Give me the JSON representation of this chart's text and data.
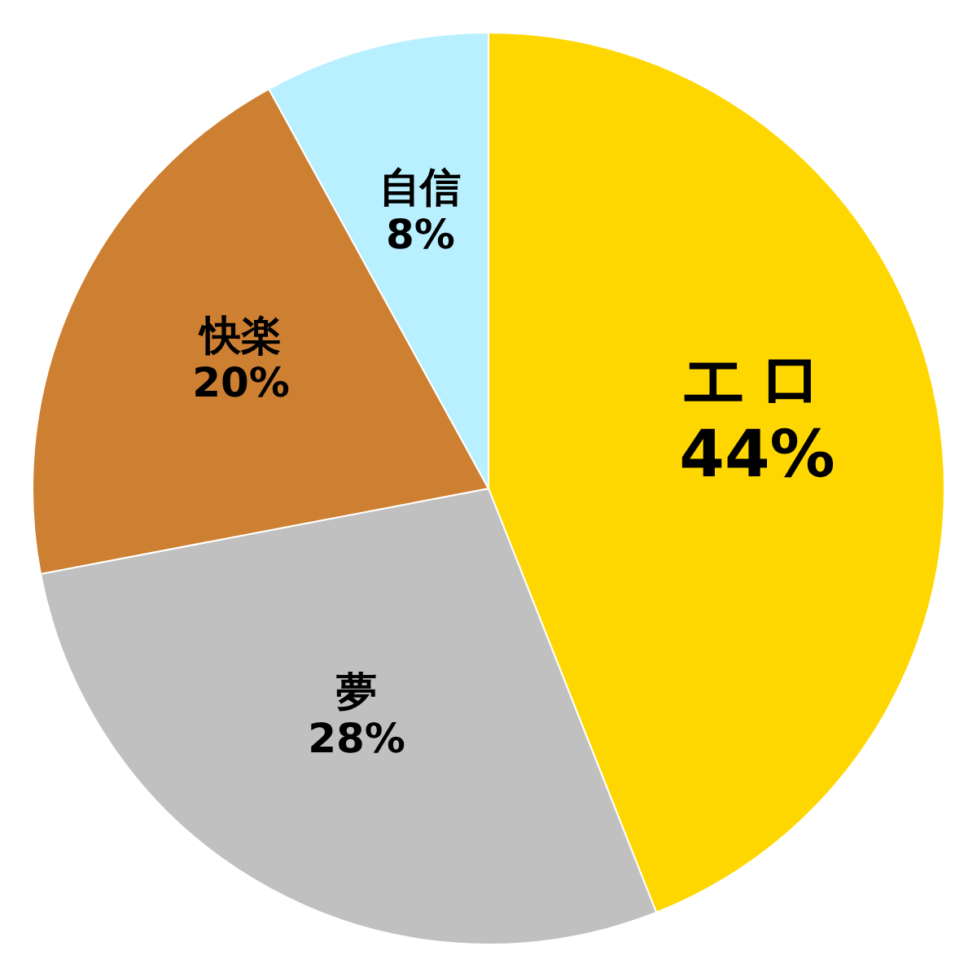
{
  "chart_data": {
    "type": "pie",
    "categories": [
      "エロ",
      "夢",
      "快楽",
      "自信"
    ],
    "values": [
      44,
      28,
      20,
      8
    ],
    "colors": [
      "#ffd700",
      "#c0c0c0",
      "#cd7f32",
      "#b9f0ff"
    ],
    "value_labels": [
      "44%",
      "28%",
      "20%",
      "8%"
    ]
  }
}
